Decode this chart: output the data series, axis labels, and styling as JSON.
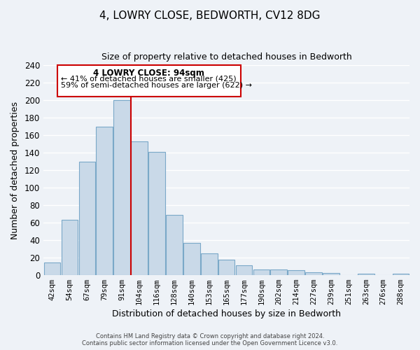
{
  "title": "4, LOWRY CLOSE, BEDWORTH, CV12 8DG",
  "subtitle": "Size of property relative to detached houses in Bedworth",
  "xlabel": "Distribution of detached houses by size in Bedworth",
  "ylabel": "Number of detached properties",
  "bar_labels": [
    "42sqm",
    "54sqm",
    "67sqm",
    "79sqm",
    "91sqm",
    "104sqm",
    "116sqm",
    "128sqm",
    "140sqm",
    "153sqm",
    "165sqm",
    "177sqm",
    "190sqm",
    "202sqm",
    "214sqm",
    "227sqm",
    "239sqm",
    "251sqm",
    "263sqm",
    "276sqm",
    "288sqm"
  ],
  "bar_values": [
    14,
    63,
    130,
    170,
    200,
    153,
    141,
    69,
    37,
    25,
    17,
    11,
    6,
    6,
    5,
    3,
    2,
    0,
    1,
    0,
    1
  ],
  "bar_color": "#c9d9e8",
  "bar_edge_color": "#7aa8c8",
  "marker_line_index": 4,
  "marker_label": "4 LOWRY CLOSE: 94sqm",
  "annotation_line1": "← 41% of detached houses are smaller (425)",
  "annotation_line2": "59% of semi-detached houses are larger (622) →",
  "box_color": "#cc0000",
  "ylim": [
    0,
    240
  ],
  "yticks": [
    0,
    20,
    40,
    60,
    80,
    100,
    120,
    140,
    160,
    180,
    200,
    220,
    240
  ],
  "footer1": "Contains HM Land Registry data © Crown copyright and database right 2024.",
  "footer2": "Contains public sector information licensed under the Open Government Licence v3.0.",
  "bg_color": "#eef2f7",
  "grid_color": "#ffffff"
}
